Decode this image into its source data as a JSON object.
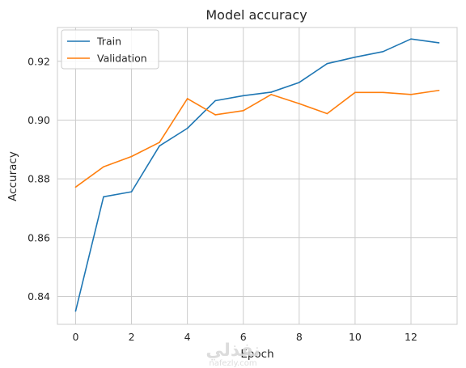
{
  "chart_data": {
    "type": "line",
    "title": "Model accuracy",
    "xlabel": "Epoch",
    "ylabel": "Accuracy",
    "xlim": [
      -0.65,
      13.65
    ],
    "ylim": [
      0.8305,
      0.9315
    ],
    "xticks": [
      0,
      2,
      4,
      6,
      8,
      10,
      12
    ],
    "yticks": [
      0.84,
      0.86,
      0.88,
      0.9,
      0.92
    ],
    "ytick_labels": [
      "0.84",
      "0.86",
      "0.88",
      "0.90",
      "0.92"
    ],
    "grid": true,
    "legend_position": "top-left",
    "x": [
      0,
      1,
      2,
      3,
      4,
      5,
      6,
      7,
      8,
      9,
      10,
      11,
      12,
      13
    ],
    "series": [
      {
        "name": "Train",
        "color": "#1f77b4",
        "values": [
          0.835,
          0.8739,
          0.8756,
          0.8912,
          0.8972,
          0.9066,
          0.9083,
          0.9095,
          0.9128,
          0.9192,
          0.9214,
          0.9233,
          0.9276,
          0.9263
        ]
      },
      {
        "name": "Validation",
        "color": "#ff7f0e",
        "values": [
          0.8772,
          0.8841,
          0.8876,
          0.8924,
          0.9073,
          0.9018,
          0.9032,
          0.9087,
          0.9056,
          0.9022,
          0.9094,
          0.9094,
          0.9087,
          0.9101
        ]
      }
    ]
  },
  "watermark": {
    "text": "نفذلي",
    "subtext": "nafezly.com"
  }
}
